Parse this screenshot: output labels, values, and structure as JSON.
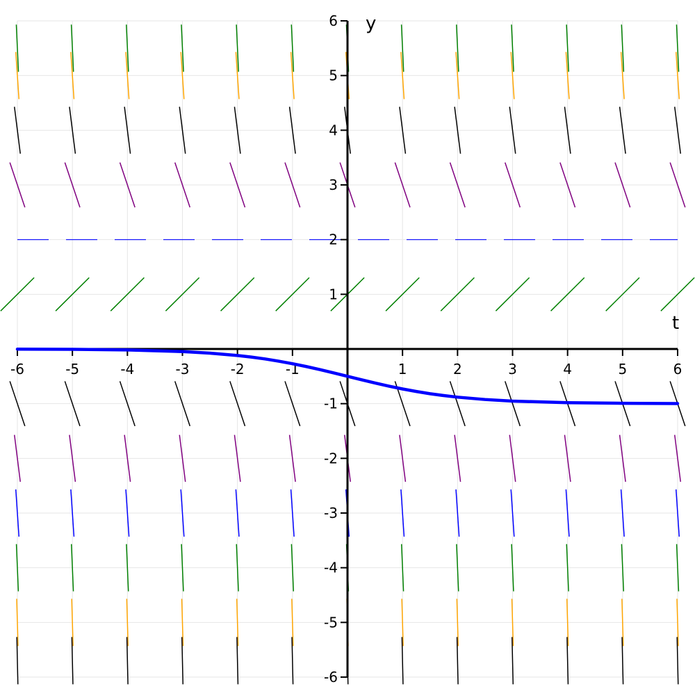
{
  "chart_data": {
    "type": "line",
    "title": "",
    "xlabel": "t",
    "ylabel": "y",
    "xlim": [
      -6,
      6
    ],
    "ylim": [
      -6,
      6
    ],
    "grid": true,
    "x_ticks": [
      "-6",
      "-5",
      "-4",
      "-3",
      "-2",
      "-1",
      "1",
      "2",
      "3",
      "4",
      "5",
      "6"
    ],
    "y_ticks": [
      "6",
      "5",
      "4",
      "3",
      "2",
      "1",
      "-1",
      "-2",
      "-3",
      "-4",
      "-5",
      "-6"
    ],
    "slope_field": {
      "t_values": [
        -6,
        -5,
        -4,
        -3,
        -2,
        -1,
        0,
        1,
        2,
        3,
        4,
        5,
        6
      ],
      "rows": [
        {
          "y": 5.5,
          "slope": -22,
          "color": "#008000"
        },
        {
          "y": 5,
          "slope": -15,
          "color": "#FFA500"
        },
        {
          "y": 4,
          "slope": -8,
          "color": "#000000"
        },
        {
          "y": 3,
          "slope": -3,
          "color": "#800080"
        },
        {
          "y": 1,
          "slope": 1,
          "color": "#008000"
        },
        {
          "y": -1,
          "slope": -3,
          "color": "#000000"
        },
        {
          "y": -2,
          "slope": -8,
          "color": "#800080"
        },
        {
          "y": -3,
          "slope": -15,
          "color": "#0000FF"
        },
        {
          "y": -4,
          "slope": -24,
          "color": "#008000"
        },
        {
          "y": -5,
          "slope": -35,
          "color": "#FFA500"
        },
        {
          "y": -5.7,
          "slope": -45,
          "color": "#000000"
        }
      ]
    },
    "reference_line": {
      "y": 2,
      "color": "#0000FF",
      "style": "dashed"
    },
    "series": [
      {
        "color": "#0000FF",
        "x": [
          -6,
          -5,
          -4,
          -3,
          -2.5,
          -2,
          -1.75,
          -1.5,
          -1.25,
          -1,
          -0.75,
          -0.5,
          -0.25,
          0,
          0.25,
          0.5,
          0.75,
          1,
          1.25,
          1.5,
          1.75,
          2,
          2.5,
          3,
          4,
          5,
          6
        ],
        "y": [
          -0.0024,
          -0.0067,
          -0.018,
          -0.047,
          -0.076,
          -0.119,
          -0.148,
          -0.182,
          -0.223,
          -0.269,
          -0.321,
          -0.378,
          -0.438,
          -0.5,
          -0.562,
          -0.622,
          -0.679,
          -0.731,
          -0.777,
          -0.818,
          -0.852,
          -0.881,
          -0.924,
          -0.953,
          -0.982,
          -0.993,
          -0.998
        ]
      }
    ]
  }
}
